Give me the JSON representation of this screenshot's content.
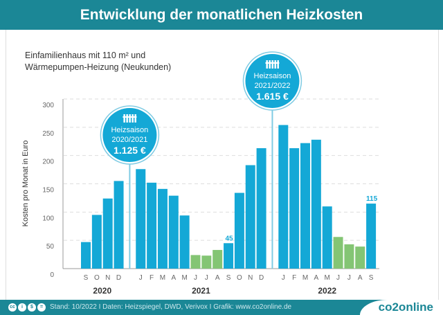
{
  "header": {
    "title": "Entwicklung der monatlichen Heizkosten"
  },
  "subtitle": [
    "Einfamilienhaus mit 110 m² und",
    "Wärmepumpen-Heizung (Neukunden)"
  ],
  "footer": {
    "source": "Stand: 10/2022  I  Daten: Heizspiegel, DWD, Verivox  I  Grafik: www.co2online.de",
    "logo": "co2online",
    "license_icons": [
      "cc-icon",
      "by-icon",
      "nc-icon",
      "nd-icon"
    ]
  },
  "colors": {
    "heating": "#14a8d6",
    "summer": "#84c574",
    "header": "#1b8796"
  },
  "chart_data": {
    "type": "bar",
    "ylabel": "Kosten pro Monat in Euro",
    "ylim": [
      0,
      300
    ],
    "yticks": [
      0,
      50,
      100,
      150,
      200,
      250,
      300
    ],
    "grid": true,
    "years": [
      {
        "label": "2020",
        "start": 0,
        "end": 3
      },
      {
        "label": "2021",
        "start": 4,
        "end": 15
      },
      {
        "label": "2022",
        "start": 16,
        "end": 24
      }
    ],
    "categories": [
      "S",
      "O",
      "N",
      "D",
      "J",
      "F",
      "M",
      "A",
      "M",
      "J",
      "J",
      "A",
      "S",
      "O",
      "N",
      "D",
      "J",
      "F",
      "M",
      "A",
      "M",
      "J",
      "J",
      "A",
      "S"
    ],
    "values": [
      47,
      95,
      124,
      155,
      176,
      152,
      141,
      129,
      94,
      24,
      23,
      33,
      45,
      134,
      183,
      213,
      254,
      213,
      222,
      228,
      110,
      56,
      43,
      39,
      115
    ],
    "summer": [
      false,
      false,
      false,
      false,
      false,
      false,
      false,
      false,
      false,
      true,
      true,
      true,
      false,
      false,
      false,
      false,
      false,
      false,
      false,
      false,
      false,
      true,
      true,
      true,
      false
    ],
    "data_labels": [
      {
        "index": 12,
        "text": "45"
      },
      {
        "index": 24,
        "text": "115"
      }
    ],
    "annotations": [
      {
        "after_index": 3,
        "title": "Heizsaison",
        "season": "2020/2021",
        "total": "1.125 €"
      },
      {
        "after_index": 15,
        "title": "Heizsaison",
        "season": "2021/2022",
        "total": "1.615 €"
      }
    ]
  }
}
